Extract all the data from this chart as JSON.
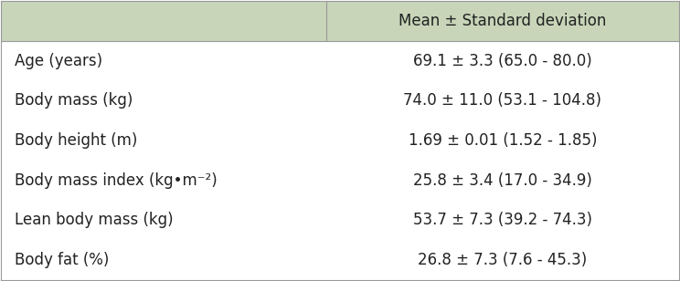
{
  "header_val": "Mean ± Standard deviation",
  "rows": [
    {
      "label": "Age (years)",
      "value": "69.1 ± 3.3 (65.0 - 80.0)"
    },
    {
      "label": "Body mass (kg)",
      "value": "74.0 ± 11.0 (53.1 - 104.8)"
    },
    {
      "label": "Body height (m)",
      "value": "1.69 ± 0.01 (1.52 - 1.85)"
    },
    {
      "label": "Body mass index (kg•m⁻²)",
      "value": "25.8 ± 3.4 (17.0 - 34.9)"
    },
    {
      "label": "Lean body mass (kg)",
      "value": "53.7 ± 7.3 (39.2 - 74.3)"
    },
    {
      "label": "Body fat (%)",
      "value": "26.8 ± 7.3 (7.6 - 45.3)"
    }
  ],
  "header_bg": "#c8d5b9",
  "row_bg": "#ffffff",
  "line_color": "#999999",
  "text_color": "#222222",
  "header_fontsize": 12,
  "row_fontsize": 12,
  "fig_width": 7.44,
  "fig_height": 3.08,
  "col_split": 0.48
}
